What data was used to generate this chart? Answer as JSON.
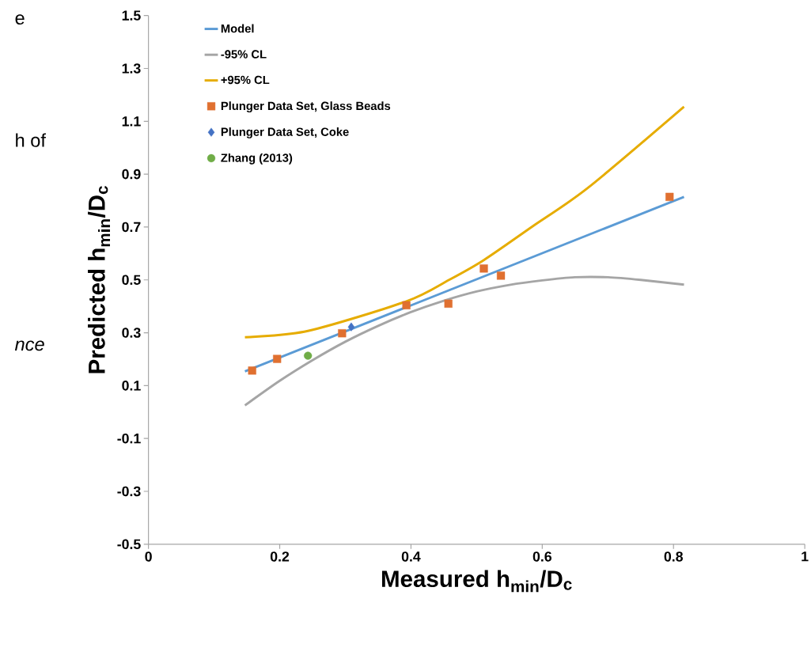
{
  "chart_data": {
    "type": "line",
    "xlabel": "Measured h$_{min}$/D$_{c}$",
    "ylabel": "Predicted h$_{min}$/D$_{c}$",
    "xlim": [
      0,
      1
    ],
    "ylim": [
      -0.5,
      1.5
    ],
    "xticks": [
      0,
      0.2,
      0.4,
      0.6,
      0.8,
      1
    ],
    "yticks": [
      -0.5,
      -0.3,
      -0.1,
      0.1,
      0.3,
      0.5,
      0.7,
      0.9,
      1.1,
      1.3,
      1.5
    ],
    "legend": "top left",
    "annotations": [
      "e",
      "h of",
      "nce"
    ],
    "series": [
      {
        "name": "Model",
        "color": "#5b9bd5",
        "marker": "none",
        "line_style": "solid",
        "x": [
          0.147,
          0.816
        ],
        "values": [
          0.154,
          0.814
        ]
      },
      {
        "name": "-95% CL",
        "color": "#a5a5a5",
        "marker": "none",
        "line_style": "solid",
        "x": [
          0.147,
          0.2,
          0.25,
          0.3,
          0.35,
          0.4,
          0.45,
          0.5,
          0.55,
          0.6,
          0.65,
          0.7,
          0.75,
          0.816
        ],
        "values": [
          0.025,
          0.118,
          0.196,
          0.266,
          0.326,
          0.378,
          0.421,
          0.456,
          0.481,
          0.498,
          0.51,
          0.51,
          0.5,
          0.482
        ]
      },
      {
        "name": "+95% CL",
        "color": "#e6ac00",
        "marker": "none",
        "line_style": "solid",
        "x": [
          0.147,
          0.243,
          0.393,
          0.458,
          0.511,
          0.585,
          0.67,
          0.816
        ],
        "values": [
          0.283,
          0.307,
          0.419,
          0.5,
          0.575,
          0.702,
          0.849,
          1.155
        ]
      },
      {
        "name": "Plunger Data Set, Glass Beads",
        "type": "scatter",
        "color": "#e07030",
        "marker": "square",
        "x": [
          0.158,
          0.196,
          0.295,
          0.393,
          0.457,
          0.511,
          0.537,
          0.794
        ],
        "values": [
          0.157,
          0.201,
          0.298,
          0.404,
          0.41,
          0.543,
          0.516,
          0.814
        ]
      },
      {
        "name": "Plunger Data Set, Coke",
        "type": "scatter",
        "color": "#4472c4",
        "marker": "diamond",
        "x": [
          0.309
        ],
        "values": [
          0.322
        ]
      },
      {
        "name": "Zhang (2013)",
        "type": "scatter",
        "color": "#70ad47",
        "marker": "circle",
        "x": [
          0.243
        ],
        "values": [
          0.213
        ]
      }
    ]
  }
}
